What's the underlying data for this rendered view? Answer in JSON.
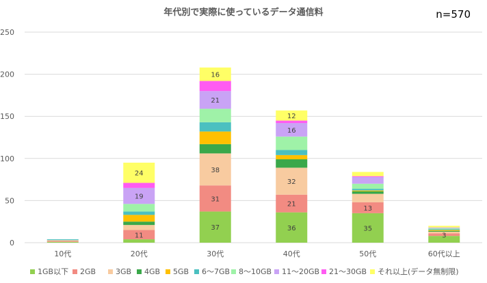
{
  "chart_data": {
    "type": "bar",
    "stacked": true,
    "title": "年代別で実際に使っているデータ通信料",
    "annotation": "n=570",
    "categories": [
      "10代",
      "20代",
      "30代",
      "40代",
      "50代",
      "60代以上"
    ],
    "ylim": [
      0,
      250
    ],
    "yticks": [
      0,
      50,
      100,
      150,
      200,
      250
    ],
    "grid": true,
    "legend_position": "bottom",
    "series": [
      {
        "name": "1GB以下",
        "color": "#92d050",
        "values": [
          1,
          4,
          37,
          36,
          35,
          8
        ]
      },
      {
        "name": "2GB",
        "color": "#f28b82",
        "values": [
          1,
          11,
          31,
          21,
          13,
          3
        ]
      },
      {
        "name": "3GB",
        "color": "#f8cba0",
        "values": [
          1,
          6,
          38,
          32,
          10,
          2
        ]
      },
      {
        "name": "4GB",
        "color": "#3aa84a",
        "values": [
          0,
          4,
          11,
          10,
          3,
          1
        ]
      },
      {
        "name": "5GB",
        "color": "#ffc000",
        "values": [
          0,
          8,
          15,
          5,
          1,
          1
        ]
      },
      {
        "name": "6〜7GB",
        "color": "#4bc0c0",
        "values": [
          1,
          4,
          11,
          6,
          2,
          1
        ]
      },
      {
        "name": "8〜10GB",
        "color": "#9ff2a8",
        "values": [
          0,
          9,
          16,
          16,
          6,
          1
        ]
      },
      {
        "name": "11〜20GB",
        "color": "#c9a3f5",
        "values": [
          0,
          19,
          21,
          16,
          8,
          1
        ]
      },
      {
        "name": "21〜30GB",
        "color": "#ff5cf2",
        "values": [
          0,
          6,
          12,
          3,
          1,
          0
        ]
      },
      {
        "name": "それ以上(データ無制限)",
        "color": "#ffff66",
        "values": [
          0,
          24,
          16,
          12,
          5,
          2
        ]
      }
    ],
    "data_labels": [
      {
        "series": 0,
        "category": 2,
        "text": "37"
      },
      {
        "series": 0,
        "category": 3,
        "text": "36"
      },
      {
        "series": 0,
        "category": 4,
        "text": "35"
      },
      {
        "series": 1,
        "category": 1,
        "text": "11"
      },
      {
        "series": 1,
        "category": 2,
        "text": "31"
      },
      {
        "series": 1,
        "category": 3,
        "text": "21"
      },
      {
        "series": 1,
        "category": 4,
        "text": "13"
      },
      {
        "series": 1,
        "category": 5,
        "text": "3"
      },
      {
        "series": 2,
        "category": 2,
        "text": "38"
      },
      {
        "series": 2,
        "category": 3,
        "text": "32"
      },
      {
        "series": 7,
        "category": 1,
        "text": "19"
      },
      {
        "series": 7,
        "category": 2,
        "text": "21"
      },
      {
        "series": 7,
        "category": 3,
        "text": "16"
      },
      {
        "series": 9,
        "category": 1,
        "text": "24"
      },
      {
        "series": 9,
        "category": 2,
        "text": "16"
      },
      {
        "series": 9,
        "category": 3,
        "text": "12"
      }
    ]
  }
}
